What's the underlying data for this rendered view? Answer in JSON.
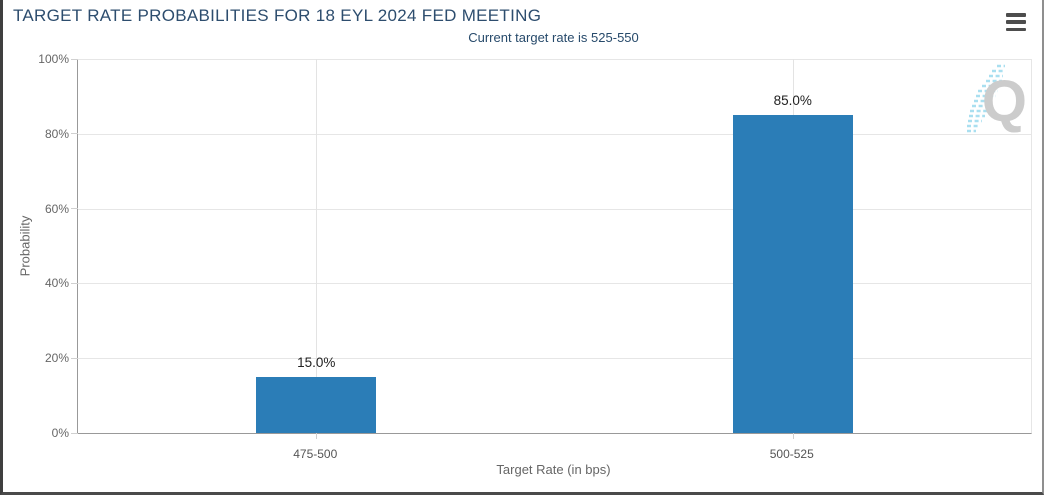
{
  "header": {
    "menu_icon": "hamburger-menu"
  },
  "chart_data": {
    "type": "bar",
    "title": "TARGET RATE PROBABILITIES FOR 18 EYL 2024 FED MEETING",
    "subtitle": "Current target rate is 525-550",
    "categories": [
      "475-500",
      "500-525"
    ],
    "values": [
      15.0,
      85.0
    ],
    "data_labels": [
      "15.0%",
      "85.0%"
    ],
    "xlabel": "Target Rate (in bps)",
    "ylabel": "Probability",
    "ylim": [
      0,
      100
    ],
    "yticks": [
      0,
      20,
      40,
      60,
      80,
      100
    ],
    "ytick_labels": [
      "0%",
      "20%",
      "40%",
      "60%",
      "80%",
      "100%"
    ],
    "grid": true,
    "legend": "none",
    "bar_color": "#2b7db7"
  },
  "watermark": {
    "letter": "Q"
  }
}
